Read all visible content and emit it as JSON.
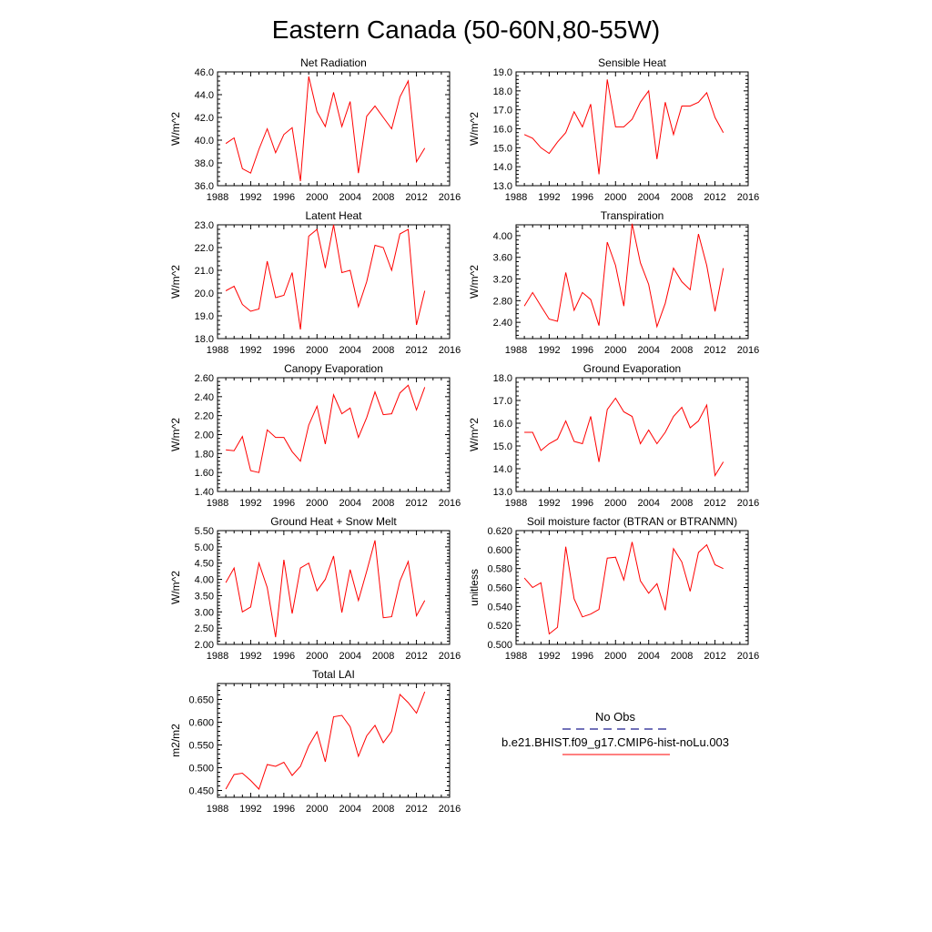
{
  "figure_title": "Eastern Canada (50-60N,80-55W)",
  "legend": {
    "obs_label": "No Obs",
    "obs_color": "#1f1f8f",
    "model_label": "b.e21.BHIST.f09_g17.CMIP6-hist-noLu.003",
    "model_color": "#ff0000"
  },
  "chart_data": [
    {
      "type": "line",
      "title": "Net Radiation",
      "ylabel": "W/m^2",
      "xlim": [
        1988,
        2016
      ],
      "xticks": [
        1988,
        1992,
        1996,
        2000,
        2004,
        2008,
        2012,
        2016
      ],
      "ylim": [
        36.0,
        46.0
      ],
      "yticks": [
        "36.0",
        "38.0",
        "40.0",
        "42.0",
        "44.0",
        "46.0"
      ],
      "series": [
        {
          "x": [
            1989,
            1990,
            1991,
            1992,
            1993,
            1994,
            1995,
            1996,
            1997,
            1998,
            1999,
            2000,
            2001,
            2002,
            2003,
            2004,
            2005,
            2006,
            2007,
            2008,
            2009,
            2010,
            2011,
            2012,
            2013
          ],
          "values": [
            39.7,
            40.2,
            37.5,
            37.1,
            39.2,
            41.0,
            38.9,
            40.5,
            41.1,
            36.4,
            45.6,
            42.5,
            41.2,
            44.2,
            41.2,
            43.4,
            37.1,
            42.1,
            43.0,
            42.0,
            41.0,
            43.8,
            45.2,
            38.1,
            39.3
          ]
        }
      ]
    },
    {
      "type": "line",
      "title": "Sensible Heat",
      "ylabel": "W/m^2",
      "xlim": [
        1988,
        2016
      ],
      "xticks": [
        1988,
        1992,
        1996,
        2000,
        2004,
        2008,
        2012,
        2016
      ],
      "ylim": [
        13.0,
        19.0
      ],
      "yticks": [
        "13.0",
        "14.0",
        "15.0",
        "16.0",
        "17.0",
        "18.0",
        "19.0"
      ],
      "series": [
        {
          "x": [
            1989,
            1990,
            1991,
            1992,
            1993,
            1994,
            1995,
            1996,
            1997,
            1998,
            1999,
            2000,
            2001,
            2002,
            2003,
            2004,
            2005,
            2006,
            2007,
            2008,
            2009,
            2010,
            2011,
            2012,
            2013
          ],
          "values": [
            15.7,
            15.5,
            15.0,
            14.7,
            15.3,
            15.8,
            16.9,
            16.1,
            17.3,
            13.6,
            18.6,
            16.1,
            16.1,
            16.5,
            17.4,
            18.0,
            14.4,
            17.4,
            15.7,
            17.2,
            17.2,
            17.4,
            17.9,
            16.6,
            15.8
          ]
        }
      ]
    },
    {
      "type": "line",
      "title": "Latent Heat",
      "ylabel": "W/m^2",
      "xlim": [
        1988,
        2016
      ],
      "xticks": [
        1988,
        1992,
        1996,
        2000,
        2004,
        2008,
        2012,
        2016
      ],
      "ylim": [
        18.0,
        23.0
      ],
      "yticks": [
        "18.0",
        "19.0",
        "20.0",
        "21.0",
        "22.0",
        "23.0"
      ],
      "series": [
        {
          "x": [
            1989,
            1990,
            1991,
            1992,
            1993,
            1994,
            1995,
            1996,
            1997,
            1998,
            1999,
            2000,
            2001,
            2002,
            2003,
            2004,
            2005,
            2006,
            2007,
            2008,
            2009,
            2010,
            2011,
            2012,
            2013
          ],
          "values": [
            20.1,
            20.3,
            19.5,
            19.2,
            19.3,
            21.4,
            19.8,
            19.9,
            20.9,
            18.4,
            22.5,
            22.8,
            21.1,
            23.0,
            20.9,
            21.0,
            19.4,
            20.5,
            22.1,
            22.0,
            21.0,
            22.6,
            22.8,
            18.6,
            20.1
          ]
        }
      ]
    },
    {
      "type": "line",
      "title": "Transpiration",
      "ylabel": "W/m^2",
      "xlim": [
        1988,
        2016
      ],
      "xticks": [
        1988,
        1992,
        1996,
        2000,
        2004,
        2008,
        2012,
        2016
      ],
      "ylim": [
        2.1,
        4.2
      ],
      "yticks": [
        "2.40",
        "2.80",
        "3.20",
        "3.60",
        "4.00"
      ],
      "series": [
        {
          "x": [
            1989,
            1990,
            1991,
            1992,
            1993,
            1994,
            1995,
            1996,
            1997,
            1998,
            1999,
            2000,
            2001,
            2002,
            2003,
            2004,
            2005,
            2006,
            2007,
            2008,
            2009,
            2010,
            2011,
            2012,
            2013
          ],
          "values": [
            2.7,
            2.95,
            2.7,
            2.46,
            2.42,
            3.32,
            2.62,
            2.95,
            2.82,
            2.34,
            3.88,
            3.45,
            2.7,
            4.22,
            3.5,
            3.1,
            2.32,
            2.75,
            3.4,
            3.15,
            3.0,
            4.03,
            3.45,
            2.6,
            3.4
          ]
        }
      ]
    },
    {
      "type": "line",
      "title": "Canopy Evaporation",
      "ylabel": "W/m^2",
      "xlim": [
        1988,
        2016
      ],
      "xticks": [
        1988,
        1992,
        1996,
        2000,
        2004,
        2008,
        2012,
        2016
      ],
      "ylim": [
        1.4,
        2.6
      ],
      "yticks": [
        "1.40",
        "1.60",
        "1.80",
        "2.00",
        "2.20",
        "2.40",
        "2.60"
      ],
      "series": [
        {
          "x": [
            1989,
            1990,
            1991,
            1992,
            1993,
            1994,
            1995,
            1996,
            1997,
            1998,
            1999,
            2000,
            2001,
            2002,
            2003,
            2004,
            2005,
            2006,
            2007,
            2008,
            2009,
            2010,
            2011,
            2012,
            2013
          ],
          "values": [
            1.84,
            1.83,
            1.98,
            1.62,
            1.6,
            2.05,
            1.97,
            1.97,
            1.82,
            1.72,
            2.1,
            2.3,
            1.9,
            2.42,
            2.22,
            2.28,
            1.97,
            2.18,
            2.45,
            2.21,
            2.22,
            2.44,
            2.52,
            2.26,
            2.5
          ]
        }
      ]
    },
    {
      "type": "line",
      "title": "Ground Evaporation",
      "ylabel": "W/m^2",
      "xlim": [
        1988,
        2016
      ],
      "xticks": [
        1988,
        1992,
        1996,
        2000,
        2004,
        2008,
        2012,
        2016
      ],
      "ylim": [
        13.0,
        18.0
      ],
      "yticks": [
        "13.0",
        "14.0",
        "15.0",
        "16.0",
        "17.0",
        "18.0"
      ],
      "series": [
        {
          "x": [
            1989,
            1990,
            1991,
            1992,
            1993,
            1994,
            1995,
            1996,
            1997,
            1998,
            1999,
            2000,
            2001,
            2002,
            2003,
            2004,
            2005,
            2006,
            2007,
            2008,
            2009,
            2010,
            2011,
            2012,
            2013
          ],
          "values": [
            15.6,
            15.6,
            14.8,
            15.1,
            15.3,
            16.1,
            15.2,
            15.1,
            16.3,
            14.3,
            16.6,
            17.1,
            16.5,
            16.3,
            15.1,
            15.7,
            15.1,
            15.6,
            16.3,
            16.7,
            15.8,
            16.1,
            16.8,
            13.7,
            14.3
          ]
        }
      ]
    },
    {
      "type": "line",
      "title": "Ground Heat + Snow Melt",
      "ylabel": "W/m^2",
      "xlim": [
        1988,
        2016
      ],
      "xticks": [
        1988,
        1992,
        1996,
        2000,
        2004,
        2008,
        2012,
        2016
      ],
      "ylim": [
        2.0,
        5.5
      ],
      "yticks": [
        "2.00",
        "2.50",
        "3.00",
        "3.50",
        "4.00",
        "4.50",
        "5.00",
        "5.50"
      ],
      "series": [
        {
          "x": [
            1989,
            1990,
            1991,
            1992,
            1993,
            1994,
            1995,
            1996,
            1997,
            1998,
            1999,
            2000,
            2001,
            2002,
            2003,
            2004,
            2005,
            2006,
            2007,
            2008,
            2009,
            2010,
            2011,
            2012,
            2013
          ],
          "values": [
            3.9,
            4.35,
            3.0,
            3.15,
            4.5,
            3.75,
            2.22,
            4.6,
            2.95,
            4.35,
            4.5,
            3.65,
            4.0,
            4.72,
            2.98,
            4.3,
            3.35,
            4.25,
            5.2,
            2.82,
            2.85,
            3.95,
            4.55,
            2.88,
            3.35
          ]
        }
      ]
    },
    {
      "type": "line",
      "title": "Soil moisture factor (BTRAN or BTRANMN)",
      "ylabel": "unitless",
      "xlim": [
        1988,
        2016
      ],
      "xticks": [
        1988,
        1992,
        1996,
        2000,
        2004,
        2008,
        2012,
        2016
      ],
      "ylim": [
        0.5,
        0.62
      ],
      "yticks": [
        "0.500",
        "0.520",
        "0.540",
        "0.560",
        "0.580",
        "0.600",
        "0.620"
      ],
      "series": [
        {
          "x": [
            1989,
            1990,
            1991,
            1992,
            1993,
            1994,
            1995,
            1996,
            1997,
            1998,
            1999,
            2000,
            2001,
            2002,
            2003,
            2004,
            2005,
            2006,
            2007,
            2008,
            2009,
            2010,
            2011,
            2012,
            2013
          ],
          "values": [
            0.57,
            0.56,
            0.565,
            0.511,
            0.518,
            0.603,
            0.548,
            0.529,
            0.532,
            0.537,
            0.591,
            0.592,
            0.568,
            0.608,
            0.567,
            0.554,
            0.564,
            0.536,
            0.601,
            0.587,
            0.556,
            0.597,
            0.605,
            0.584,
            0.58
          ]
        }
      ]
    },
    {
      "type": "line",
      "title": "Total LAI",
      "ylabel": "m2/m2",
      "xlim": [
        1988,
        2016
      ],
      "xticks": [
        1988,
        1992,
        1996,
        2000,
        2004,
        2008,
        2012,
        2016
      ],
      "ylim": [
        0.435,
        0.685
      ],
      "yticks": [
        "0.450",
        "0.500",
        "0.550",
        "0.600",
        "0.650"
      ],
      "series": [
        {
          "x": [
            1989,
            1990,
            1991,
            1992,
            1993,
            1994,
            1995,
            1996,
            1997,
            1998,
            1999,
            2000,
            2001,
            2002,
            2003,
            2004,
            2005,
            2006,
            2007,
            2008,
            2009,
            2010,
            2011,
            2012,
            2013
          ],
          "values": [
            0.453,
            0.485,
            0.488,
            0.472,
            0.453,
            0.507,
            0.503,
            0.512,
            0.483,
            0.503,
            0.548,
            0.579,
            0.513,
            0.612,
            0.615,
            0.59,
            0.525,
            0.57,
            0.593,
            0.555,
            0.58,
            0.661,
            0.643,
            0.62,
            0.667
          ]
        }
      ]
    }
  ]
}
